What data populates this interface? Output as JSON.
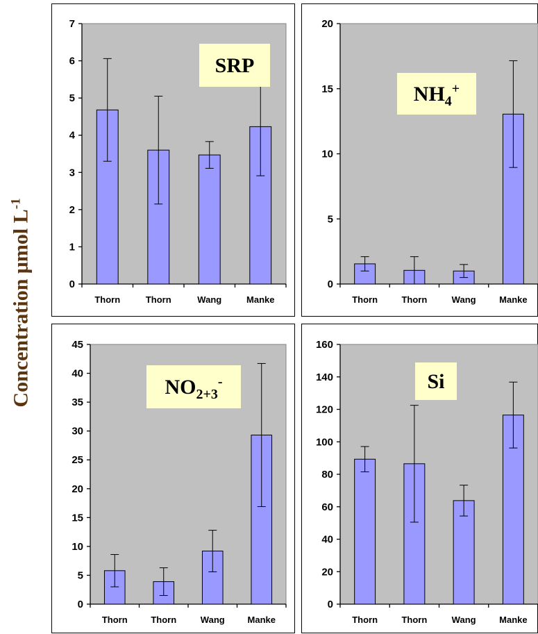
{
  "y_axis_label": {
    "text": "Concentration μmol L",
    "superscript": "-1"
  },
  "chart_data": [
    {
      "type": "bar",
      "title": "SRP",
      "title_parts": [
        {
          "t": "SRP",
          "s": "n"
        }
      ],
      "categories": [
        "Thorn",
        "Thorn",
        "Wang",
        "Manke"
      ],
      "values": [
        4.68,
        3.6,
        3.47,
        4.23
      ],
      "error": [
        1.38,
        1.45,
        0.36,
        1.32
      ],
      "ylim": [
        0,
        7
      ],
      "yticks": [
        0,
        1,
        2,
        3,
        4,
        5,
        6,
        7
      ],
      "grid": false,
      "bar_color": "#9999ff",
      "background_color": "#c0c0c0"
    },
    {
      "type": "bar",
      "title": "NH4+",
      "title_parts": [
        {
          "t": "NH",
          "s": "n"
        },
        {
          "t": "4",
          "s": "sub"
        },
        {
          "t": "+",
          "s": "sup"
        }
      ],
      "categories": [
        "Thorn",
        "Thorn",
        "Wang",
        "Manke"
      ],
      "values": [
        1.55,
        1.05,
        1.0,
        13.05
      ],
      "error": [
        0.55,
        1.05,
        0.5,
        4.1
      ],
      "ylim": [
        0,
        20
      ],
      "yticks": [
        0,
        5,
        10,
        15,
        20
      ],
      "grid": false,
      "bar_color": "#9999ff",
      "background_color": "#c0c0c0"
    },
    {
      "type": "bar",
      "title": "NO2+3-",
      "title_parts": [
        {
          "t": "NO",
          "s": "n"
        },
        {
          "t": "2+3",
          "s": "sub"
        },
        {
          "t": "-",
          "s": "sup"
        }
      ],
      "categories": [
        "Thorn",
        "Thorn",
        "Wang",
        "Manke"
      ],
      "values": [
        5.8,
        3.9,
        9.2,
        29.3
      ],
      "error": [
        2.8,
        2.4,
        3.6,
        12.4
      ],
      "ylim": [
        0,
        45
      ],
      "yticks": [
        0,
        5,
        10,
        15,
        20,
        25,
        30,
        35,
        40,
        45
      ],
      "grid": false,
      "bar_color": "#9999ff",
      "background_color": "#c0c0c0"
    },
    {
      "type": "bar",
      "title": "Si",
      "title_parts": [
        {
          "t": "Si",
          "s": "n"
        }
      ],
      "categories": [
        "Thorn",
        "Thorn",
        "Wang",
        "Manke"
      ],
      "values": [
        89.3,
        86.5,
        63.8,
        116.5
      ],
      "error": [
        7.8,
        36.0,
        9.5,
        20.3
      ],
      "ylim": [
        0,
        160
      ],
      "yticks": [
        0,
        20,
        40,
        60,
        80,
        100,
        120,
        140,
        160
      ],
      "grid": false,
      "bar_color": "#9999ff",
      "background_color": "#c0c0c0"
    }
  ]
}
